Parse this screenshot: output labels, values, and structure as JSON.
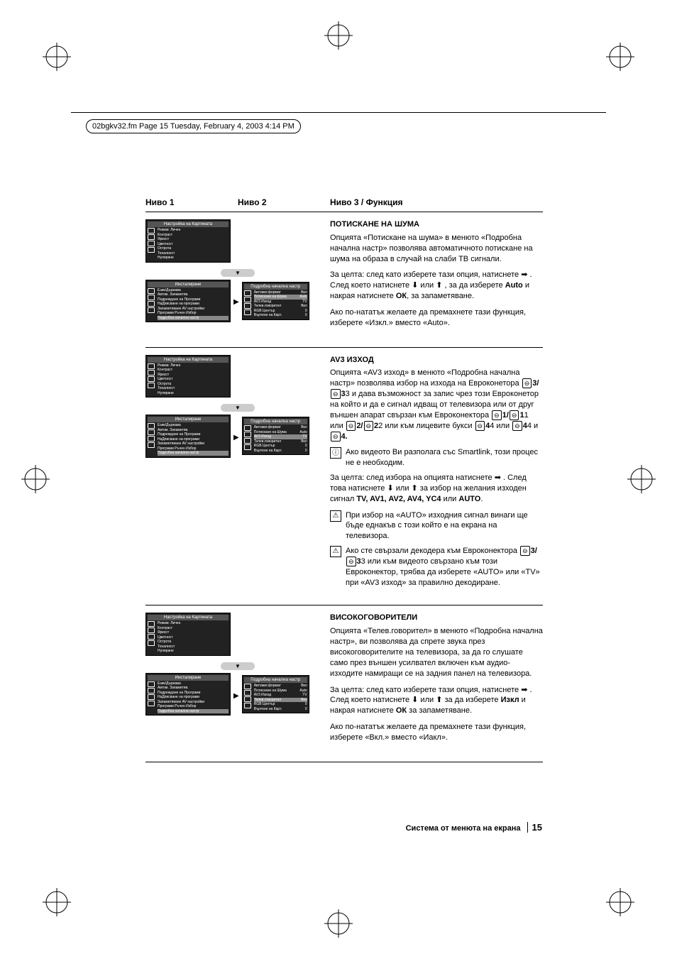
{
  "meta": {
    "header_text": "02bgkv32.fm  Page 15  Tuesday, February 4, 2003  4:14 PM"
  },
  "levels": {
    "l1": "Ниво 1",
    "l2": "Ниво 2",
    "l3": "Ниво 3 / Функция"
  },
  "menu_picture": {
    "title": "Настройка на Картината",
    "items": [
      "Режим: Личен",
      "Контраст",
      "Яркост",
      "Цветност",
      "Острота",
      "Тоналност",
      "Нулиране"
    ]
  },
  "menu_install": {
    "title": "Инсталиране",
    "items": [
      "Език/Държава",
      "Автом. Запаметяв.",
      "Подреждане на Програми",
      "НаДписване на програми",
      "Запаметяване AV настройки",
      "Програми Ръчен Избор",
      "Подробна начална настр"
    ]
  },
  "menu_detail": {
    "title": "Подробна начална настр",
    "rows": [
      {
        "label": "Автомат.формат",
        "val": "Вкл"
      },
      {
        "label": "Потискане на Шума",
        "val": "Auto"
      },
      {
        "label": "AV3 Изход",
        "val": "TV"
      },
      {
        "label": "Телев.говорител",
        "val": "Вкл"
      },
      {
        "label": "RGB Център",
        "val": "0"
      },
      {
        "label": "Въртене на Карт.",
        "val": "0"
      }
    ]
  },
  "sections": {
    "noise": {
      "title": "ПОТИСКАНЕ НА ШУМА",
      "p1": "Опцията «Потискане на шума» в менюто «Подробна начална настр» позволява автоматичното потискане на шума на образа в случай на слаби ТВ сигнали.",
      "p2a": "За целта: след като изберете тази опция, натиснете ",
      "p2b": " . След което натиснете ",
      "p2c": " или ",
      "p2d": " , за да изберете ",
      "p2e": "Auto",
      "p2f": " и накрая натиснете ",
      "p2g": "ОК",
      "p2h": ", за запаметяване.",
      "p3": "Ако по-нататък желаете да премахнете тази функция, изберете «Изкл.» вместо «Auto»."
    },
    "av3": {
      "title": "AV3 ИЗХОД",
      "p1a": "Опцията «AV3 изход» в менюто «Подробна начална настр» позволява избор на изхода на Евроконетора ",
      "p1b": "3/",
      "p1c": "3 и дава възможност за запис чрез този Евроконетор на който и да е сигнал идващ от телевизора или от друг външен апарат свързан към Евроконектора ",
      "p1d": "1/",
      "p1e": "1 или ",
      "p1f": "2/",
      "p1g": "2 или към лицевите букси ",
      "p1h": "4 или ",
      "p1i": "4 и ",
      "p1j": "4.",
      "info1": "Ако видеото Ви разполага със Smartlink, този процес не е необходим.",
      "p2a": "За целта: след избора на опцията натиснете ",
      "p2b": " . След това натиснете ",
      "p2c": " или ",
      "p2d": " за избор на желания изходен сигнал ",
      "p2e": "TV, AV1, AV2, AV4, YC4",
      "p2f": " или ",
      "p2g": "AUTO",
      "p2h": ".",
      "warn1": "При избор на «AUTO» изходния сигнал винаги ще бъде еднакъв с този който е на екрана на телевизора.",
      "warn2a": "Ако сте свързали декодера към Евроконектора ",
      "warn2b": "3/",
      "warn2c": "3 или към видеото свързано към този Евроконектор, трябва да изберете «AUTO» или «TV» при «AV3 изход» за правилно декодиране."
    },
    "speakers": {
      "title": "ВИСОКОГОВОРИТЕЛИ",
      "p1": "Опцията «Телев.говорител» в менюто «Подробна начална настр», ви позволява да спрете звука през високоговорителите на телевизора, за да го слушате само през външен усилвател включен към аудио-изходите намиращи се на задния панел на телевизора.",
      "p2a": "За целта: след като изберете тази опция, натиснете ",
      "p2b": " . След което натиснете ",
      "p2c": " или ",
      "p2d": " за да изберете ",
      "p2e": "Изкл",
      "p2f": " и накрая натиснете ",
      "p2g": "ОК",
      "p2h": " за запаметяване.",
      "p3": "Ако по-нататък желаете да премахнете тази функция, изберете «Вкл.» вместо «Иакл»."
    }
  },
  "footer": {
    "text": "Система от менюта на екрана",
    "page": "15"
  },
  "colors": {
    "menu_bg": "#222222",
    "menu_fg": "#ffffff",
    "highlight": "#888888"
  }
}
